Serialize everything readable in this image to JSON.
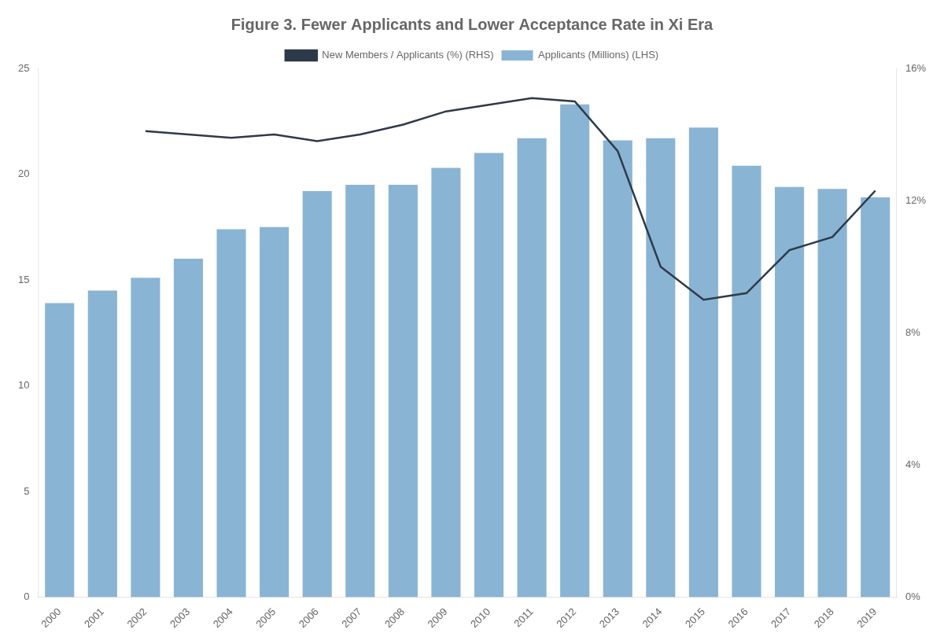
{
  "chart_data": {
    "type": "bar",
    "title": "Figure 3. Fewer Applicants and Lower Acceptance Rate in Xi Era",
    "categories": [
      "2000",
      "2001",
      "2002",
      "2003",
      "2004",
      "2005",
      "2006",
      "2007",
      "2008",
      "2009",
      "2010",
      "2011",
      "2012",
      "2013",
      "2014",
      "2015",
      "2016",
      "2017",
      "2018",
      "2019"
    ],
    "series": [
      {
        "name": "Applicants (Millions) (LHS)",
        "type": "bar",
        "color": "#8ab4d4",
        "values": [
          13.9,
          14.5,
          15.1,
          16.0,
          17.4,
          17.5,
          19.2,
          19.5,
          19.5,
          20.3,
          21.0,
          21.7,
          23.3,
          21.6,
          21.7,
          22.2,
          20.4,
          19.4,
          19.3,
          18.9
        ]
      },
      {
        "name": "New Members / Applicants (%) (RHS)",
        "type": "line",
        "color": "#2d3a4a",
        "axis": "y2",
        "values": [
          null,
          null,
          14.1,
          14.0,
          13.9,
          14.0,
          13.8,
          14.0,
          14.3,
          14.7,
          14.9,
          15.1,
          15.0,
          13.5,
          10.0,
          9.0,
          9.2,
          10.5,
          10.9,
          12.3
        ]
      }
    ],
    "ylim": [
      0,
      25
    ],
    "yticks": [
      0,
      5,
      10,
      15,
      20,
      25
    ],
    "y2lim": [
      0,
      16
    ],
    "y2ticks": [
      {
        "value": 0,
        "label": "0%"
      },
      {
        "value": 4,
        "label": "4%"
      },
      {
        "value": 8,
        "label": "8%"
      },
      {
        "value": 12,
        "label": "12%"
      },
      {
        "value": 16,
        "label": "16%"
      }
    ],
    "grid": false,
    "legend": "top"
  }
}
